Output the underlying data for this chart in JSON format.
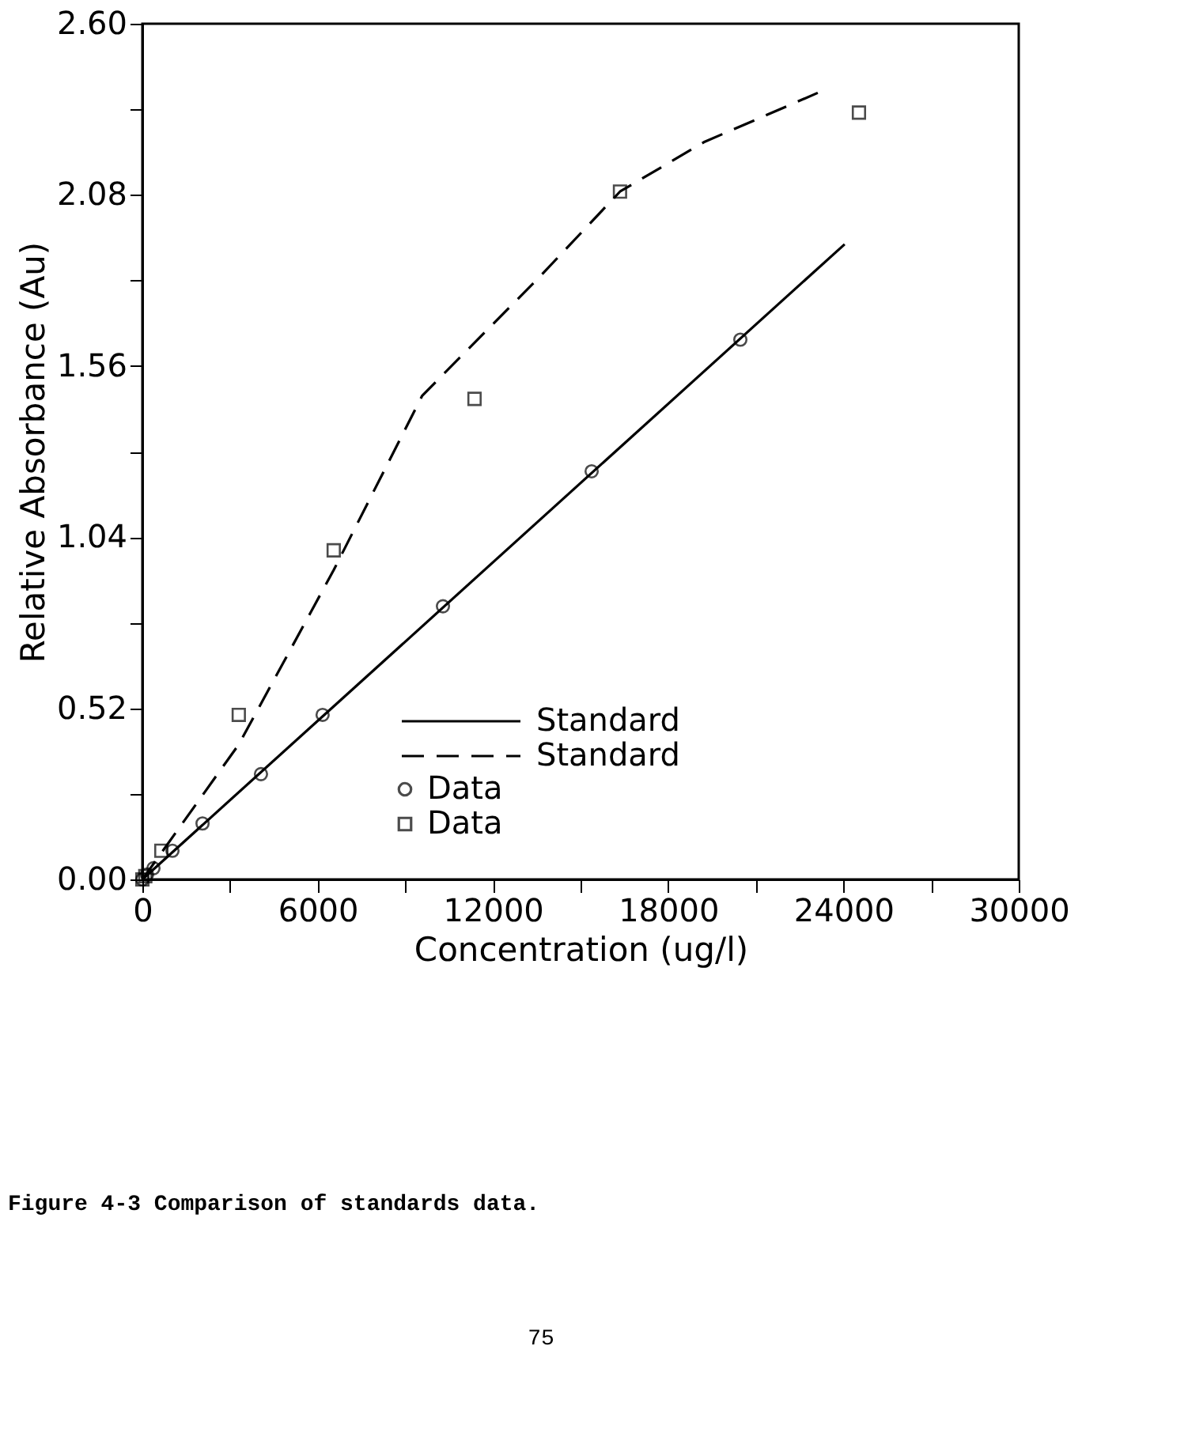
{
  "chart_data": {
    "type": "line",
    "xlabel": "Concentration (ug/l)",
    "ylabel": "Relative Absorbance (Au)",
    "xlim": [
      0,
      30000
    ],
    "ylim": [
      0,
      2.6
    ],
    "xticks": [
      0,
      {
        "value": 3000,
        "label": null
      },
      6000,
      {
        "value": 9000,
        "label": null
      },
      12000,
      {
        "value": 15000,
        "label": null
      },
      18000,
      {
        "value": 21000,
        "label": null
      },
      24000,
      {
        "value": 27000,
        "label": null
      },
      30000
    ],
    "yticks": [
      {
        "value": 0,
        "label": "0.00"
      },
      {
        "value": 0.26,
        "label": null
      },
      0.52,
      {
        "value": 0.78,
        "label": null
      },
      1.04,
      {
        "value": 1.3,
        "label": null
      },
      1.56,
      {
        "value": 1.82,
        "label": null
      },
      2.08,
      {
        "value": 2.34,
        "label": null
      },
      {
        "value": 2.6,
        "label": "2.60"
      }
    ],
    "grid": false,
    "legend": "bottom right",
    "series": [
      {
        "name": "Standard",
        "type": "line",
        "color": "#000000",
        "line_style": "solid",
        "marker": "none",
        "x": [
          0,
          24040
        ],
        "values": [
          0,
          1.93
        ]
      },
      {
        "name": "Standard",
        "type": "line",
        "color": "#000000",
        "line_style": "dashed",
        "marker": "none",
        "x": [
          0,
          3300,
          6550,
          9580,
          13590,
          16350,
          19220,
          23120
        ],
        "values": [
          0,
          0.41,
          0.94,
          1.47,
          1.83,
          2.09,
          2.24,
          2.39
        ]
      },
      {
        "name": "Data",
        "type": "scatter",
        "color": "#000000",
        "marker": "circle",
        "x": [
          0,
          160,
          380,
          1030,
          2060,
          4060,
          6170,
          10290,
          15380,
          20470
        ],
        "values": [
          0,
          0.015,
          0.034,
          0.087,
          0.17,
          0.32,
          0.5,
          0.83,
          1.24,
          1.64
        ]
      },
      {
        "name": "Data",
        "type": "scatter",
        "color": "#000000",
        "marker": "square",
        "x": [
          0,
          100,
          650,
          3300,
          6550,
          11370,
          16350,
          24530
        ],
        "values": [
          0.0,
          0.01,
          0.087,
          0.5,
          1.0,
          1.46,
          2.09,
          2.33
        ]
      }
    ],
    "annotations": [
      "Figure 4-3  Comparison of standards data.",
      "75"
    ]
  }
}
